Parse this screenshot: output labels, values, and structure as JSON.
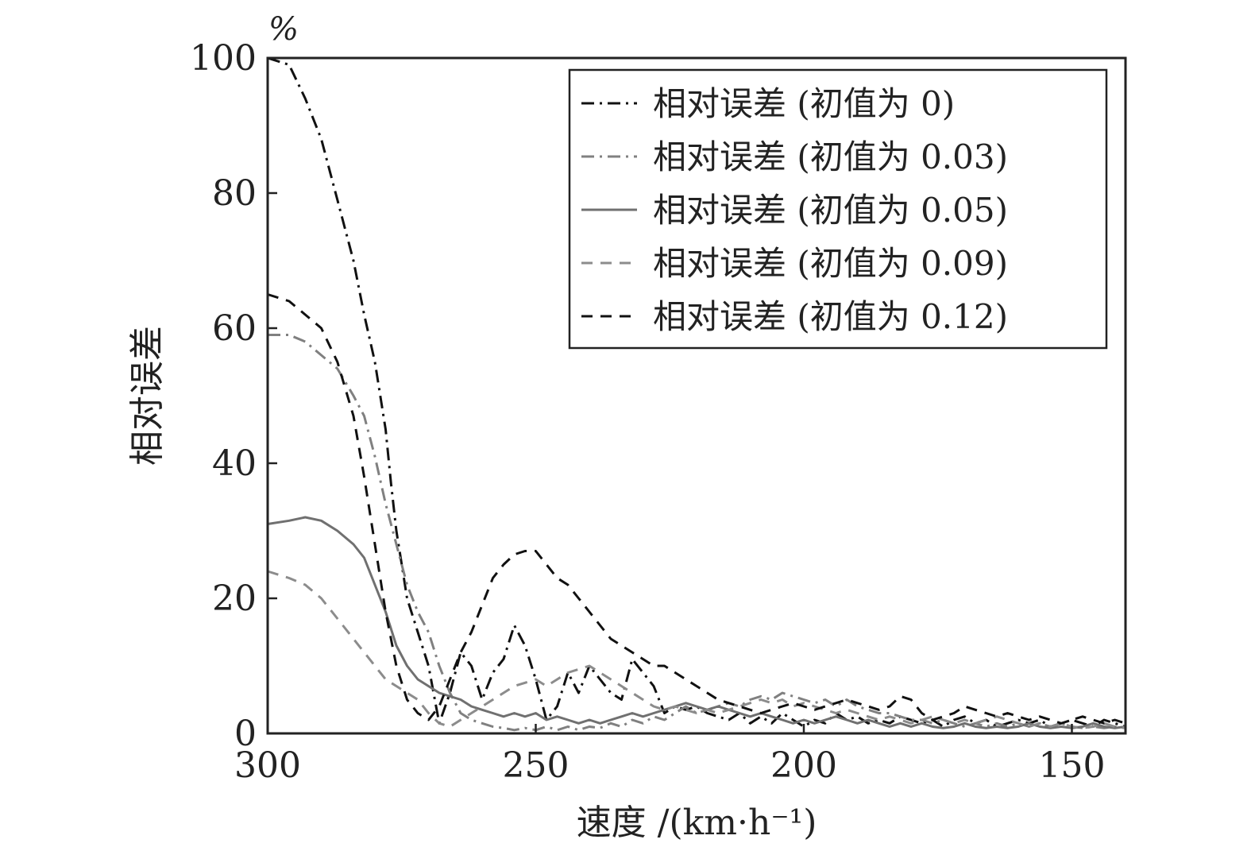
{
  "chart_data": {
    "type": "line",
    "xlabel": "速度 /(km·h⁻¹)",
    "ylabel": "相对误差",
    "yunit": "%",
    "xlim": [
      300,
      140
    ],
    "ylim": [
      0,
      100
    ],
    "xticks": [
      300,
      250,
      200,
      150
    ],
    "yticks": [
      0,
      20,
      40,
      60,
      80,
      100
    ],
    "grid": false,
    "legend_position": "top-right",
    "series": [
      {
        "name": "相对误差 (初值为 0)",
        "color": "#111111",
        "dash": "dashdot",
        "x": [
          300,
          296,
          293,
          290,
          287,
          284,
          282,
          280,
          278,
          277,
          276,
          275,
          274,
          272,
          270,
          268,
          266,
          264,
          262,
          260,
          258,
          256,
          254,
          252,
          250,
          248,
          246,
          244,
          242,
          240,
          238,
          236,
          234,
          232,
          230,
          228,
          226,
          224,
          222,
          220,
          218,
          216,
          214,
          212,
          210,
          208,
          206,
          204,
          202,
          200,
          198,
          196,
          194,
          192,
          190,
          188,
          186,
          184,
          182,
          180,
          178,
          176,
          174,
          172,
          170,
          168,
          166,
          164,
          162,
          160,
          158,
          156,
          154,
          152,
          150,
          148,
          146,
          144,
          142,
          140
        ],
        "values": [
          100,
          99,
          94,
          88,
          79,
          70,
          62,
          55,
          45,
          37,
          30,
          25,
          20,
          15,
          10,
          1.5,
          6,
          12,
          10,
          5,
          9,
          11,
          16,
          13,
          8,
          2,
          4,
          9,
          6,
          10,
          8,
          6,
          5,
          11,
          9,
          7,
          3,
          4,
          3.5,
          4,
          3,
          2.5,
          2,
          3,
          1.5,
          2.5,
          1.5,
          3,
          2,
          1,
          2,
          1.5,
          3,
          2,
          2.5,
          1.5,
          2,
          1.5,
          2.5,
          2,
          1.5,
          2,
          1,
          2,
          2.5,
          1.5,
          2,
          1,
          1.5,
          2,
          1.5,
          2,
          1,
          1.5,
          2,
          1.5,
          1,
          2,
          1.5,
          1
        ]
      },
      {
        "name": "相对误差 (初值为 0.03)",
        "color": "#808080",
        "dash": "dashdot",
        "x": [
          300,
          296,
          293,
          290,
          287,
          284,
          282,
          280,
          278,
          276,
          274,
          272,
          270,
          268,
          266,
          264,
          262,
          260,
          258,
          256,
          254,
          252,
          250,
          248,
          246,
          244,
          242,
          240,
          238,
          236,
          234,
          232,
          230,
          228,
          226,
          224,
          222,
          220,
          218,
          216,
          214,
          212,
          210,
          208,
          206,
          204,
          202,
          200,
          198,
          196,
          194,
          192,
          190,
          188,
          186,
          184,
          182,
          180,
          178,
          176,
          174,
          172,
          170,
          168,
          166,
          164,
          162,
          160,
          158,
          156,
          154,
          152,
          150,
          148,
          146,
          144,
          142,
          140
        ],
        "values": [
          59,
          59,
          58,
          56,
          54,
          50,
          47,
          41,
          34,
          28,
          22,
          18,
          15,
          10,
          6,
          3,
          2,
          1.5,
          1,
          0.8,
          0.5,
          0.8,
          0.5,
          1,
          0.5,
          1,
          0.5,
          1,
          0.8,
          1.5,
          1,
          2,
          1.5,
          2.5,
          2,
          3,
          4,
          3,
          3.5,
          4,
          4.5,
          4,
          5,
          5.5,
          5,
          6,
          5.5,
          5,
          4.5,
          5,
          4,
          5,
          4,
          3.5,
          3,
          3,
          2.5,
          2,
          2,
          1.5,
          2,
          1.5,
          1,
          1.5,
          1,
          1.5,
          1,
          1.5,
          1,
          1.5,
          1,
          1.5,
          1,
          0.8,
          1,
          0.8,
          1,
          0.8
        ]
      },
      {
        "name": "相对误差 (初值为 0.05)",
        "color": "#707070",
        "dash": "solid",
        "x": [
          300,
          296,
          293,
          290,
          287,
          284,
          282,
          280,
          278,
          276,
          274,
          272,
          270,
          268,
          266,
          264,
          262,
          260,
          258,
          256,
          254,
          252,
          250,
          248,
          246,
          244,
          242,
          240,
          238,
          236,
          234,
          232,
          230,
          228,
          226,
          224,
          222,
          220,
          218,
          216,
          214,
          212,
          210,
          208,
          206,
          204,
          202,
          200,
          198,
          196,
          194,
          192,
          190,
          188,
          186,
          184,
          182,
          180,
          178,
          176,
          174,
          172,
          170,
          168,
          166,
          164,
          162,
          160,
          158,
          156,
          154,
          152,
          150,
          148,
          146,
          144,
          142,
          140
        ],
        "values": [
          31,
          31.5,
          32,
          31.5,
          30,
          28,
          26,
          22,
          18,
          13,
          10,
          8,
          7,
          6,
          5.5,
          5,
          4,
          3.5,
          3,
          2.5,
          3,
          2.5,
          3,
          2,
          2.5,
          2,
          1.5,
          2,
          1.5,
          2,
          2.5,
          3,
          2.5,
          3,
          3.5,
          4,
          4.5,
          4,
          3.5,
          4,
          3.5,
          3,
          2.5,
          3,
          2.5,
          2,
          1.5,
          2,
          1.5,
          2,
          2.5,
          2,
          1.5,
          2,
          1.5,
          1,
          1.5,
          1,
          1.5,
          1,
          0.8,
          1,
          1.5,
          1,
          0.8,
          1,
          0.8,
          1,
          1.5,
          1,
          0.8,
          1,
          0.8,
          1,
          1.5,
          1,
          0.8,
          1
        ]
      },
      {
        "name": "相对误差 (初值为 0.09)",
        "color": "#8c8c8c",
        "dash": "dashed",
        "x": [
          300,
          296,
          293,
          290,
          287,
          284,
          282,
          280,
          278,
          276,
          274,
          272,
          270,
          268,
          266,
          264,
          262,
          260,
          258,
          256,
          254,
          252,
          250,
          248,
          246,
          244,
          242,
          240,
          238,
          236,
          234,
          232,
          230,
          228,
          226,
          224,
          222,
          220,
          218,
          216,
          214,
          212,
          210,
          208,
          206,
          204,
          202,
          200,
          198,
          196,
          194,
          192,
          190,
          188,
          186,
          184,
          182,
          180,
          178,
          176,
          174,
          172,
          170,
          168,
          166,
          164,
          162,
          160,
          158,
          156,
          154,
          152,
          150,
          148,
          146,
          144,
          142,
          140
        ],
        "values": [
          24,
          23,
          22,
          20,
          17,
          14,
          12,
          10,
          8,
          7,
          6,
          5,
          3,
          1.5,
          1,
          2,
          3,
          4,
          5,
          6,
          7,
          7.5,
          8,
          7,
          8,
          9,
          9.5,
          10,
          9,
          8,
          7,
          6,
          5,
          4,
          3.5,
          4,
          3.5,
          3,
          3.5,
          3,
          3.5,
          4,
          4.5,
          5,
          4.5,
          5,
          4,
          4.5,
          4,
          3.5,
          3,
          3.5,
          3,
          2.5,
          2,
          2.5,
          2,
          1.5,
          2,
          2.5,
          2,
          1.5,
          2,
          1.5,
          2,
          2.5,
          2,
          1.5,
          1,
          1.5,
          1,
          1.5,
          1,
          0.8,
          1,
          1.5,
          1,
          0.8
        ]
      },
      {
        "name": "相对误差 (初值为 0.12)",
        "color": "#111111",
        "dash": "dashed",
        "x": [
          300,
          296,
          293,
          290,
          287,
          284,
          282,
          280,
          278,
          276,
          274,
          272,
          270,
          268,
          266,
          264,
          262,
          260,
          258,
          256,
          254,
          252,
          250,
          248,
          246,
          244,
          242,
          240,
          238,
          236,
          234,
          232,
          230,
          228,
          226,
          224,
          222,
          220,
          218,
          216,
          214,
          212,
          210,
          208,
          206,
          204,
          202,
          200,
          198,
          196,
          194,
          192,
          190,
          188,
          186,
          184,
          182,
          180,
          178,
          176,
          174,
          172,
          170,
          168,
          166,
          164,
          162,
          160,
          158,
          156,
          154,
          152,
          150,
          148,
          146,
          144,
          142,
          140
        ],
        "values": [
          65,
          64,
          62,
          60,
          55,
          47,
          38,
          28,
          18,
          10,
          5,
          3,
          2,
          4,
          8,
          12,
          15,
          19,
          23,
          25,
          26.5,
          27,
          27,
          25,
          23,
          22,
          20,
          18,
          16,
          14,
          13,
          12,
          11,
          10,
          10,
          9,
          8,
          7,
          6,
          5,
          4.5,
          4,
          3.5,
          3,
          3.5,
          4,
          4.5,
          4,
          3.5,
          4,
          4.5,
          5,
          4.5,
          4,
          3.5,
          4,
          5.5,
          5,
          3,
          2,
          2.5,
          3,
          4,
          3.5,
          3,
          2.5,
          3,
          2.5,
          2,
          2.5,
          2,
          1.5,
          2,
          2.5,
          2,
          1.5,
          2,
          1.5
        ]
      }
    ]
  }
}
